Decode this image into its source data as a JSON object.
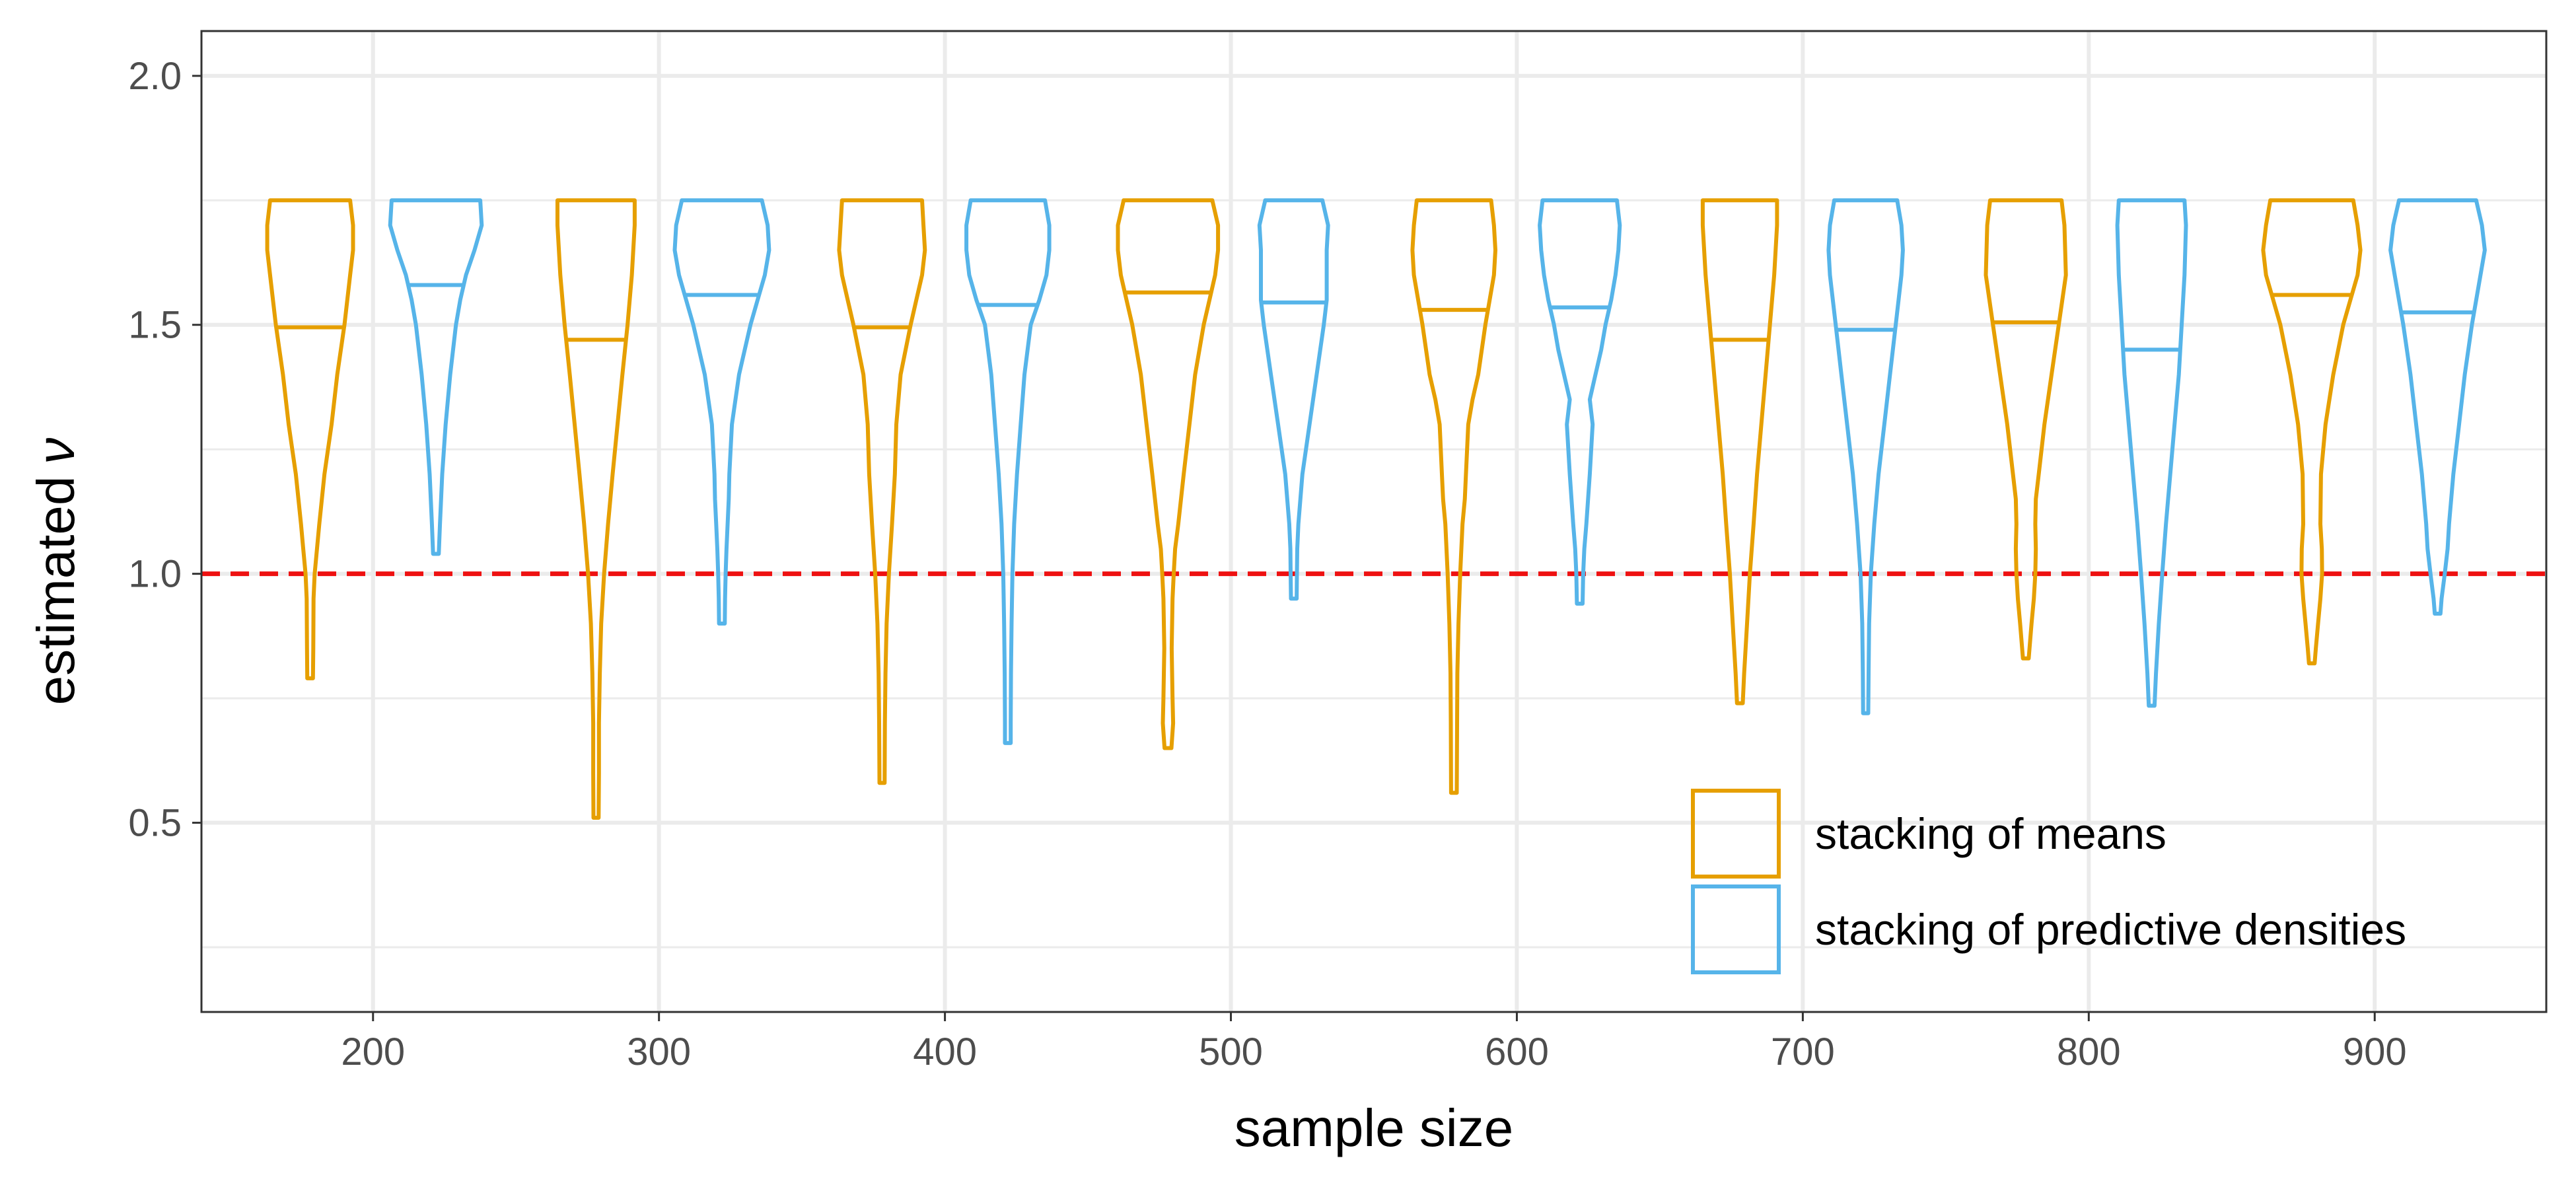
{
  "chart_data": {
    "type": "violin",
    "xlabel": "sample size",
    "ylabel": "estimated",
    "ylabel_symbol": "ν",
    "xlim": [
      140,
      960
    ],
    "ylim": [
      0.12,
      2.09
    ],
    "x_ticks": [
      200,
      300,
      400,
      500,
      600,
      700,
      800,
      900
    ],
    "x_tick_labels": [
      "200",
      "300",
      "400",
      "500",
      "600",
      "700",
      "800",
      "900"
    ],
    "y_ticks": [
      0.5,
      1.0,
      1.5,
      2.0
    ],
    "y_tick_labels": [
      "0.5",
      "1.0",
      "1.5",
      "2.0"
    ],
    "y_minor_ticks": [
      0.25,
      0.75,
      1.25,
      1.75
    ],
    "grid": true,
    "reference_line": {
      "y": 1.0,
      "style": "dashed",
      "color": "#ee1111"
    },
    "legend": {
      "position": "bottom-right"
    },
    "series": [
      {
        "name": "stacking of means",
        "color": "#e69f00",
        "offset": -22,
        "violins": [
          {
            "x": 200,
            "median": 1.495,
            "y": [
              0.79,
              0.85,
              0.95,
              1.0,
              1.05,
              1.1,
              1.2,
              1.3,
              1.4,
              1.5,
              1.6,
              1.65,
              1.7,
              1.75
            ],
            "hw": [
              1,
              1.1,
              1.2,
              1.6,
              2.4,
              3.2,
              5,
              7.5,
              9.5,
              12,
              14,
              15,
              15,
              14
            ]
          },
          {
            "x": 300,
            "median": 1.47,
            "y": [
              0.51,
              0.6,
              0.7,
              0.8,
              0.9,
              1.0,
              1.1,
              1.2,
              1.3,
              1.4,
              1.5,
              1.6,
              1.7,
              1.75
            ],
            "hw": [
              0.9,
              1,
              1,
              1.3,
              1.8,
              2.8,
              4.2,
              5.8,
              7.5,
              9.2,
              11,
              12.5,
              13.5,
              13.5
            ]
          },
          {
            "x": 400,
            "median": 1.495,
            "y": [
              0.58,
              0.7,
              0.8,
              0.9,
              1.0,
              1.1,
              1.2,
              1.3,
              1.4,
              1.5,
              1.55,
              1.6,
              1.65,
              1.7,
              1.75
            ],
            "hw": [
              0.9,
              1,
              1.2,
              1.6,
              2.4,
              3.5,
              4.5,
              5,
              6.5,
              10,
              12,
              14,
              15,
              14.5,
              14
            ]
          },
          {
            "x": 500,
            "median": 1.565,
            "y": [
              0.65,
              0.7,
              0.75,
              0.85,
              0.95,
              1.0,
              1.05,
              1.1,
              1.2,
              1.3,
              1.4,
              1.5,
              1.55,
              1.6,
              1.65,
              1.7,
              1.75
            ],
            "hw": [
              1.2,
              1.8,
              1.6,
              1.3,
              1.6,
              2,
              2.5,
              3.6,
              5.5,
              7.5,
              9.5,
              12.5,
              14.5,
              16.5,
              17.5,
              17.5,
              15.5
            ]
          },
          {
            "x": 600,
            "median": 1.53,
            "y": [
              0.56,
              0.7,
              0.8,
              0.9,
              1.0,
              1.1,
              1.15,
              1.2,
              1.3,
              1.35,
              1.4,
              1.5,
              1.55,
              1.6,
              1.65,
              1.7,
              1.75
            ],
            "hw": [
              1,
              1.1,
              1.2,
              1.6,
              2.2,
              3,
              3.8,
              4.2,
              5,
              6.5,
              8.5,
              11,
              12.5,
              14,
              14.5,
              14,
              13
            ]
          },
          {
            "x": 700,
            "median": 1.47,
            "y": [
              0.74,
              0.8,
              0.9,
              1.0,
              1.1,
              1.2,
              1.3,
              1.4,
              1.5,
              1.6,
              1.7,
              1.75
            ],
            "hw": [
              1,
              1.5,
              2.5,
              3.5,
              4.8,
              6,
              7.5,
              9,
              10.5,
              12,
              13,
              13
            ]
          },
          {
            "x": 800,
            "median": 1.505,
            "y": [
              0.83,
              0.9,
              0.95,
              1.0,
              1.05,
              1.1,
              1.15,
              1.2,
              1.3,
              1.4,
              1.5,
              1.6,
              1.7,
              1.75
            ],
            "hw": [
              1,
              2,
              2.8,
              3.3,
              3.5,
              3.3,
              3.5,
              4.5,
              6.5,
              9,
              11.5,
              14,
              13.5,
              12.5
            ]
          },
          {
            "x": 900,
            "median": 1.56,
            "y": [
              0.82,
              0.85,
              0.9,
              0.95,
              1.0,
              1.05,
              1.1,
              1.2,
              1.3,
              1.4,
              1.5,
              1.55,
              1.6,
              1.65,
              1.7,
              1.75
            ],
            "hw": [
              1,
              1.4,
              2.2,
              3,
              3.6,
              3.5,
              3,
              3.2,
              4.8,
              7.5,
              11,
              13.5,
              16,
              17,
              16,
              14.5
            ]
          }
        ]
      },
      {
        "name": "stacking of predictive densities",
        "color": "#56b4e9",
        "offset": 22,
        "violins": [
          {
            "x": 200,
            "median": 1.58,
            "y": [
              1.04,
              1.1,
              1.2,
              1.3,
              1.4,
              1.5,
              1.55,
              1.6,
              1.65,
              1.7,
              1.75
            ],
            "hw": [
              1,
              1.4,
              2.2,
              3.4,
              5,
              7,
              8.5,
              10.5,
              13.5,
              16,
              15.5
            ]
          },
          {
            "x": 300,
            "median": 1.56,
            "y": [
              0.9,
              0.95,
              1.0,
              1.05,
              1.1,
              1.15,
              1.2,
              1.3,
              1.4,
              1.5,
              1.55,
              1.6,
              1.65,
              1.7,
              1.75
            ],
            "hw": [
              1,
              1.1,
              1.3,
              1.6,
              2,
              2.4,
              2.6,
              3.5,
              6,
              10,
              12.5,
              15,
              16.5,
              16,
              14
            ]
          },
          {
            "x": 400,
            "median": 1.54,
            "y": [
              0.66,
              0.7,
              0.8,
              0.9,
              1.0,
              1.1,
              1.2,
              1.3,
              1.4,
              1.5,
              1.55,
              1.6,
              1.65,
              1.7,
              1.75
            ],
            "hw": [
              1,
              1,
              1.1,
              1.3,
              1.6,
              2.2,
              3.2,
              4.5,
              5.8,
              8,
              11,
              13.5,
              14.5,
              14.5,
              13
            ]
          },
          {
            "x": 500,
            "median": 1.545,
            "y": [
              0.95,
              1.0,
              1.05,
              1.1,
              1.2,
              1.3,
              1.4,
              1.5,
              1.55,
              1.6,
              1.65,
              1.7,
              1.75
            ],
            "hw": [
              1,
              1.1,
              1.2,
              1.6,
              3,
              5.5,
              8,
              10.5,
              11.5,
              11.5,
              11.5,
              12,
              10
            ]
          },
          {
            "x": 600,
            "median": 1.535,
            "y": [
              0.94,
              1.0,
              1.05,
              1.1,
              1.2,
              1.3,
              1.35,
              1.4,
              1.45,
              1.5,
              1.55,
              1.6,
              1.65,
              1.7,
              1.75
            ],
            "hw": [
              1,
              1.2,
              1.6,
              2.3,
              3.5,
              4.5,
              3.5,
              5.5,
              7.5,
              9,
              11,
              12.5,
              13.5,
              14,
              13
            ]
          },
          {
            "x": 700,
            "median": 1.49,
            "y": [
              0.72,
              0.8,
              0.9,
              1.0,
              1.1,
              1.2,
              1.3,
              1.4,
              1.5,
              1.6,
              1.65,
              1.7,
              1.75
            ],
            "hw": [
              0.9,
              1,
              1.2,
              1.8,
              3,
              4.5,
              6.5,
              8.5,
              10.5,
              12.5,
              13,
              12.5,
              11
            ]
          },
          {
            "x": 800,
            "median": 1.45,
            "y": [
              0.735,
              0.8,
              0.9,
              1.0,
              1.1,
              1.2,
              1.3,
              1.4,
              1.5,
              1.6,
              1.7,
              1.75
            ],
            "hw": [
              1,
              1.5,
              2.5,
              3.7,
              5,
              6.5,
              8,
              9.5,
              10.5,
              11.5,
              12,
              11.5
            ]
          },
          {
            "x": 900,
            "median": 1.525,
            "y": [
              0.92,
              0.95,
              1.0,
              1.05,
              1.1,
              1.2,
              1.3,
              1.4,
              1.5,
              1.55,
              1.6,
              1.65,
              1.7,
              1.75
            ],
            "hw": [
              1,
              1.4,
              2.5,
              3.5,
              4,
              5.5,
              7.5,
              9.5,
              12,
              13.5,
              15,
              16.5,
              15.5,
              13.5
            ]
          }
        ]
      }
    ]
  }
}
